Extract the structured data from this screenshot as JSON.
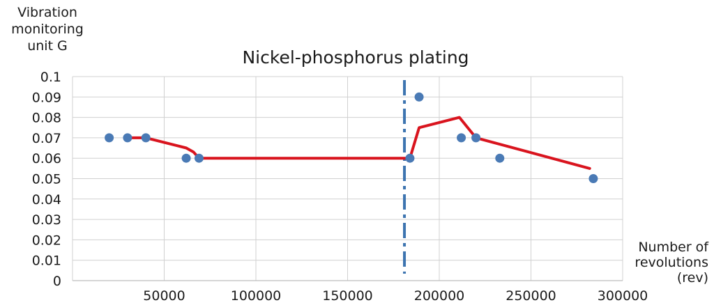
{
  "chart_data": {
    "type": "scatter",
    "title": "Nickel-phosphorus plating",
    "ylabel": "Vibration\nmonitoring\nunit G",
    "xlabel": "Number of\nrevolutions\n(rev)",
    "xlim": [
      0,
      300000
    ],
    "ylim": [
      0,
      0.1
    ],
    "x_ticks": [
      50000,
      100000,
      150000,
      200000,
      250000,
      300000
    ],
    "x_tick_labels": [
      "50000",
      "100000",
      "150000",
      "200000",
      "250000",
      "300000"
    ],
    "y_ticks": [
      0,
      0.01,
      0.02,
      0.03,
      0.04,
      0.05,
      0.06,
      0.07,
      0.08,
      0.09,
      0.1
    ],
    "y_tick_labels": [
      "0",
      "0.01",
      "0.02",
      "0.03",
      "0.04",
      "0.05",
      "0.06",
      "0.07",
      "0.08",
      "0.09",
      "0.1"
    ],
    "grid": true,
    "series": [
      {
        "type": "scatter",
        "color": "#4a7ab5",
        "x": [
          20000,
          30000,
          40000,
          62000,
          69000,
          184000,
          189000,
          212000,
          220000,
          233000,
          284000
        ],
        "y": [
          0.07,
          0.07,
          0.07,
          0.06,
          0.06,
          0.06,
          0.09,
          0.07,
          0.07,
          0.06,
          0.05
        ]
      },
      {
        "type": "line",
        "color": "#d9141e",
        "x": [
          30000,
          40000,
          62000,
          66000,
          69000,
          184000,
          189000,
          211000,
          220000,
          282000
        ],
        "y": [
          0.07,
          0.07,
          0.065,
          0.063,
          0.06,
          0.06,
          0.075,
          0.08,
          0.07,
          0.055
        ]
      },
      {
        "type": "vline",
        "color": "#3d74b0",
        "style": "dash-dot",
        "x": 181000
      }
    ]
  }
}
